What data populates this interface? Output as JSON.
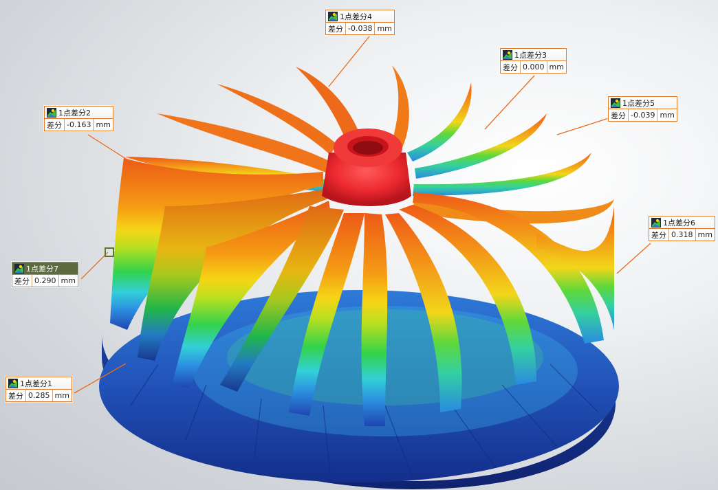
{
  "model": {
    "name": "impeller",
    "colormap": [
      "#1d3aa8",
      "#2f7de0",
      "#35c8e8",
      "#2fd45a",
      "#c8e01e",
      "#f2d21a",
      "#f28a12",
      "#e8461a",
      "#e01f2a"
    ]
  },
  "annotations": [
    {
      "title": "1点差分1",
      "diff_label": "差分",
      "value": "0.285",
      "unit": "mm",
      "selected": false
    },
    {
      "title": "1点差分2",
      "diff_label": "差分",
      "value": "-0.163",
      "unit": "mm",
      "selected": false
    },
    {
      "title": "1点差分3",
      "diff_label": "差分",
      "value": "0.000",
      "unit": "mm",
      "selected": false
    },
    {
      "title": "1点差分4",
      "diff_label": "差分",
      "value": "-0.038",
      "unit": "mm",
      "selected": false
    },
    {
      "title": "1点差分5",
      "diff_label": "差分",
      "value": "-0.039",
      "unit": "mm",
      "selected": false
    },
    {
      "title": "1点差分6",
      "diff_label": "差分",
      "value": "0.318",
      "unit": "mm",
      "selected": false
    },
    {
      "title": "1点差分7",
      "diff_label": "差分",
      "value": "0.290",
      "unit": "mm",
      "selected": true
    }
  ],
  "icon": "deviation-map-icon"
}
